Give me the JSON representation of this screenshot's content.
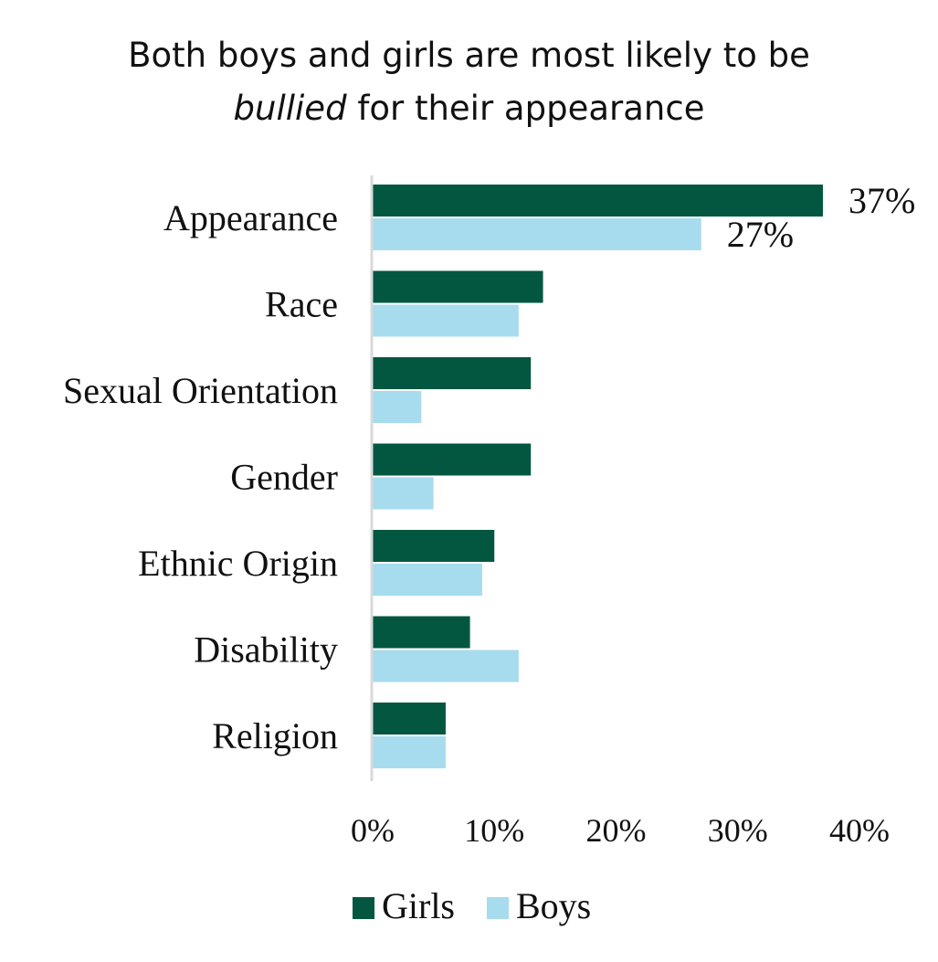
{
  "chart_data": {
    "type": "bar",
    "orientation": "horizontal",
    "title_line1": "Both boys and girls are most likely to be",
    "title_line2_emphasis": "bullied",
    "title_line2_rest": " for their appearance",
    "categories": [
      "Appearance",
      "Race",
      "Sexual Orientation",
      "Gender",
      "Ethnic Origin",
      "Disability",
      "Religion"
    ],
    "series": [
      {
        "name": "Girls",
        "color": "#035741",
        "values": [
          37,
          14,
          13,
          13,
          10,
          8,
          6
        ]
      },
      {
        "name": "Boys",
        "color": "#a6dcee",
        "values": [
          27,
          12,
          4,
          5,
          9,
          12,
          6
        ]
      }
    ],
    "data_labels": [
      {
        "series": 0,
        "index": 0,
        "text": "37%"
      },
      {
        "series": 1,
        "index": 0,
        "text": "27%"
      }
    ],
    "xlim": [
      0,
      40
    ],
    "x_ticks": [
      0,
      10,
      20,
      30,
      40
    ],
    "x_tick_labels": [
      "0%",
      "10%",
      "20%",
      "30%",
      "40%"
    ],
    "grid": false,
    "legend_position": "bottom"
  }
}
